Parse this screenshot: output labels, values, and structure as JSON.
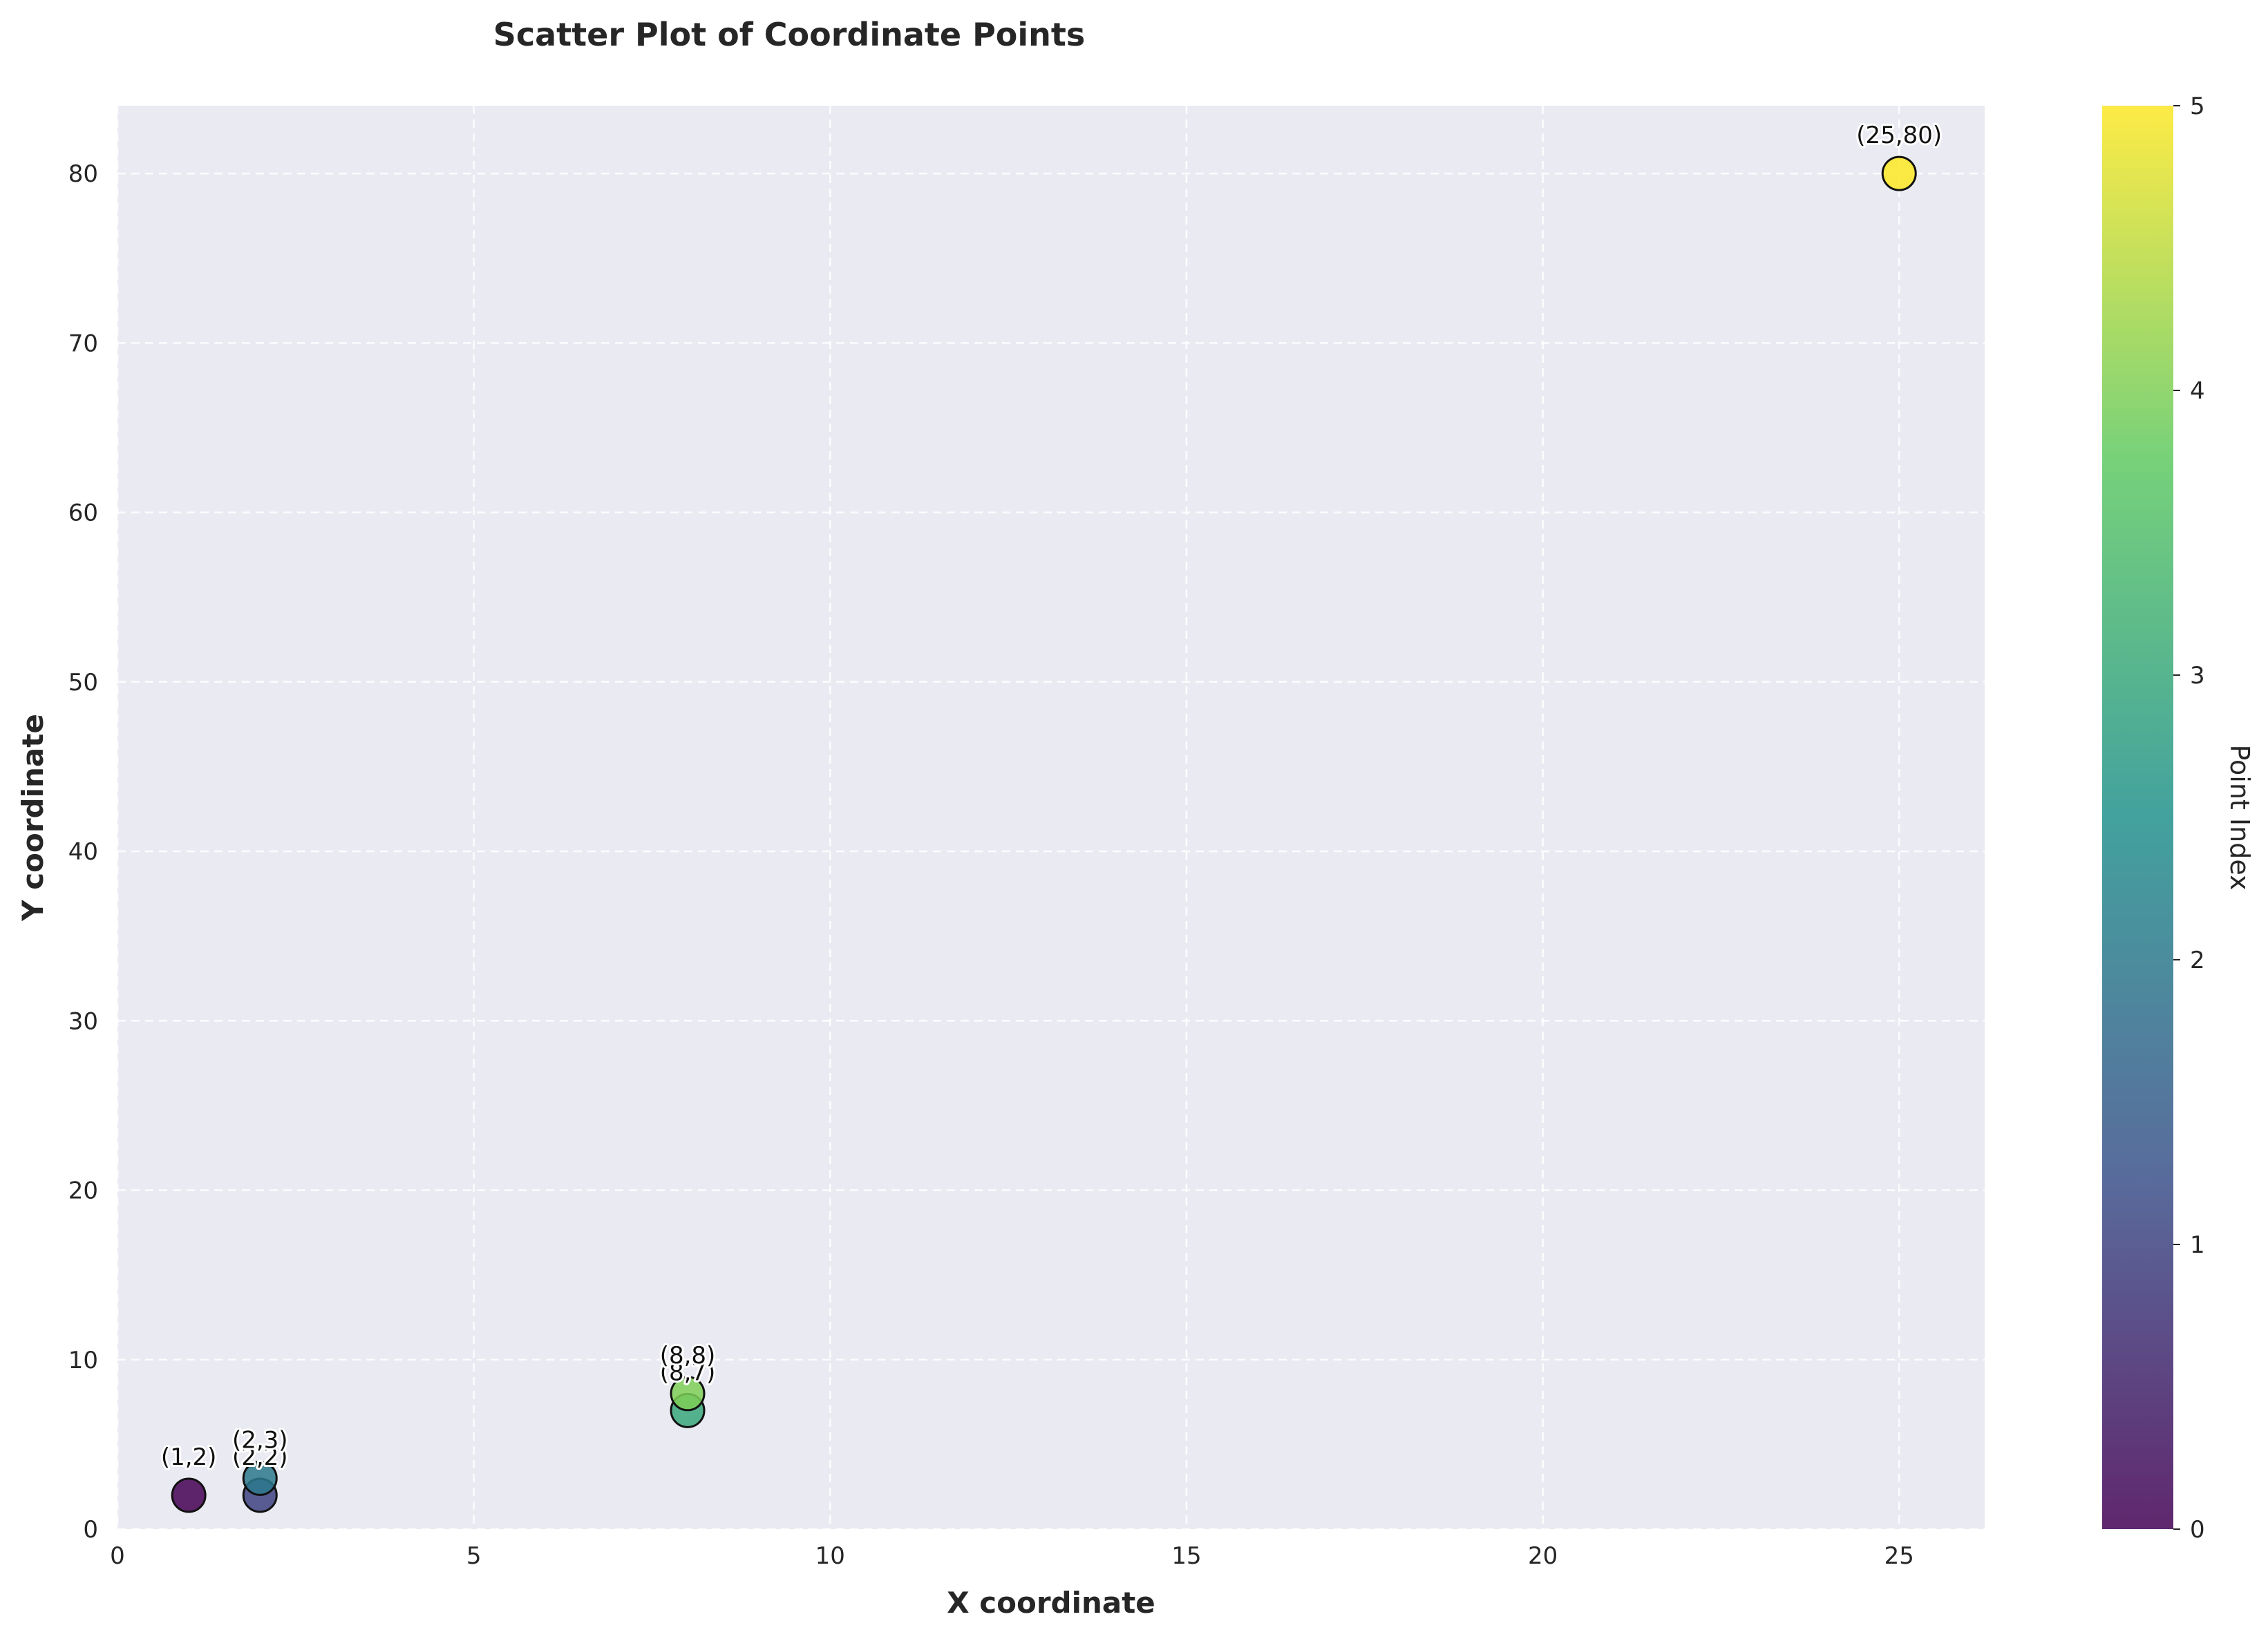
{
  "chart_data": {
    "type": "scatter",
    "title": "Scatter Plot of Coordinate Points",
    "xlabel": "X coordinate",
    "ylabel": "Y coordinate",
    "xlim": [
      0,
      26.2
    ],
    "ylim": [
      0,
      84
    ],
    "x_ticks": [
      0,
      5,
      10,
      15,
      20,
      25
    ],
    "y_ticks": [
      0,
      10,
      20,
      30,
      40,
      50,
      60,
      70,
      80
    ],
    "grid": true,
    "background_color": "#eaeaf2",
    "colormap": "viridis",
    "points": [
      {
        "x": 1,
        "y": 2,
        "index": 0,
        "label": "(1,2)"
      },
      {
        "x": 2,
        "y": 2,
        "index": 1,
        "label": "(2,2)"
      },
      {
        "x": 2,
        "y": 3,
        "index": 2,
        "label": "(2,3)"
      },
      {
        "x": 8,
        "y": 7,
        "index": 3,
        "label": "(8,7)"
      },
      {
        "x": 8,
        "y": 8,
        "index": 4,
        "label": "(8,8)"
      },
      {
        "x": 25,
        "y": 80,
        "index": 5,
        "label": "(25,80)"
      }
    ],
    "colorbar": {
      "label": "Point Index",
      "range": [
        0,
        5
      ],
      "ticks": [
        0,
        1,
        2,
        3,
        4,
        5
      ],
      "colors": [
        "#440154",
        "#3b528b",
        "#21918c",
        "#5ec962",
        "#fde725"
      ]
    }
  }
}
